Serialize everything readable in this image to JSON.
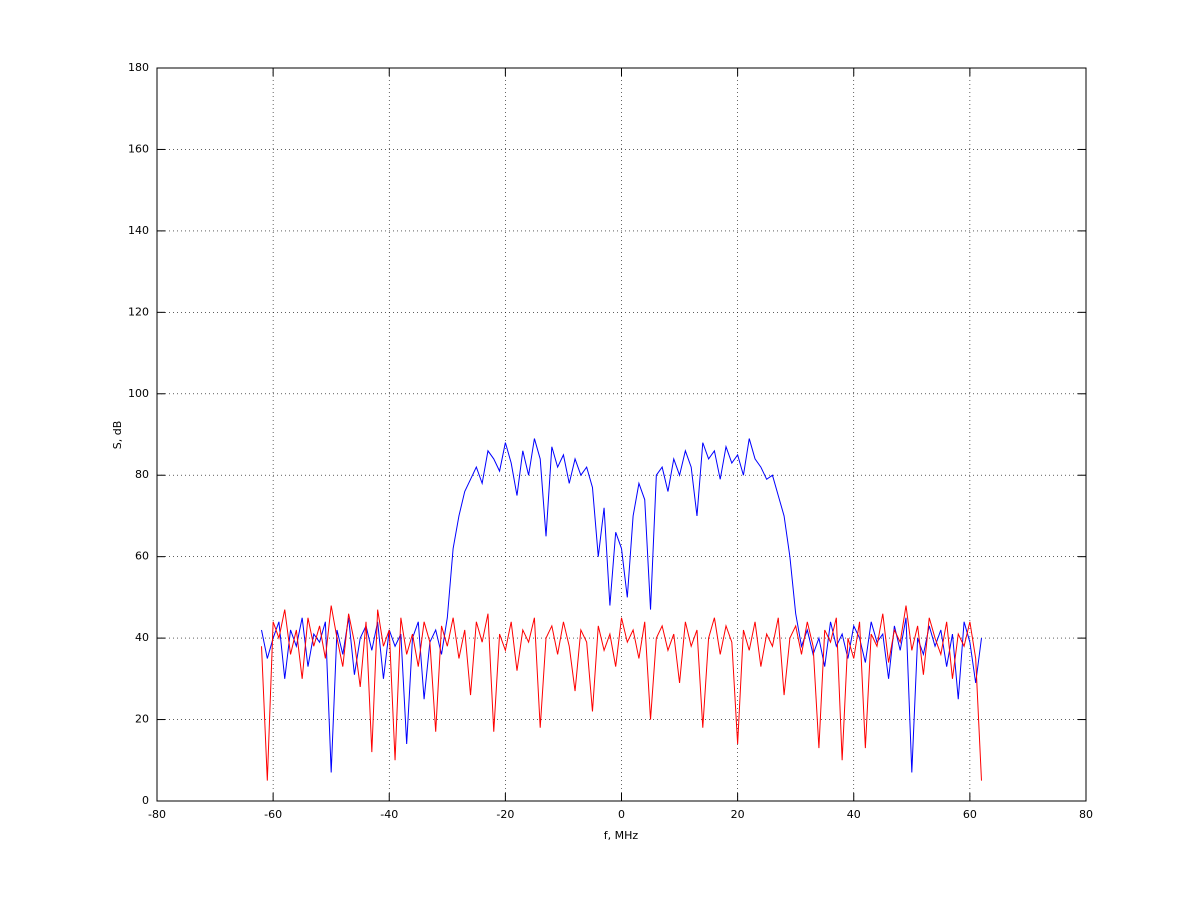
{
  "chart_data": {
    "type": "line",
    "xlabel": "f, MHz",
    "ylabel": "S, dB",
    "x": [
      -62,
      -61,
      -60,
      -59,
      -58,
      -57,
      -56,
      -55,
      -54,
      -53,
      -52,
      -51,
      -50,
      -49,
      -48,
      -47,
      -46,
      -45,
      -44,
      -43,
      -42,
      -41,
      -40,
      -39,
      -38,
      -37,
      -36,
      -35,
      -34,
      -33,
      -32,
      -31,
      -30,
      -29,
      -28,
      -27,
      -26,
      -25,
      -24,
      -23,
      -22,
      -21,
      -20,
      -19,
      -18,
      -17,
      -16,
      -15,
      -14,
      -13,
      -12,
      -11,
      -10,
      -9,
      -8,
      -7,
      -6,
      -5,
      -4,
      -3,
      -2,
      -1,
      0,
      1,
      2,
      3,
      4,
      5,
      6,
      7,
      8,
      9,
      10,
      11,
      12,
      13,
      14,
      15,
      16,
      17,
      18,
      19,
      20,
      21,
      22,
      23,
      24,
      25,
      26,
      27,
      28,
      29,
      30,
      31,
      32,
      33,
      34,
      35,
      36,
      37,
      38,
      39,
      40,
      41,
      42,
      43,
      44,
      45,
      46,
      47,
      48,
      49,
      50,
      51,
      52,
      53,
      54,
      55,
      56,
      57,
      58,
      59,
      60,
      61,
      62
    ],
    "series": [
      {
        "color": "#0000ff",
        "values": [
          42,
          35,
          40,
          44,
          30,
          42,
          38,
          45,
          33,
          41,
          39,
          44,
          7,
          42,
          36,
          45,
          31,
          40,
          43,
          37,
          44,
          30,
          42,
          38,
          41,
          14,
          40,
          44,
          25,
          39,
          42,
          36,
          45,
          62,
          70,
          76,
          79,
          82,
          78,
          86,
          84,
          81,
          88,
          83,
          75,
          86,
          80,
          89,
          84,
          65,
          87,
          82,
          85,
          78,
          84,
          80,
          82,
          77,
          60,
          72,
          48,
          66,
          62,
          50,
          70,
          78,
          74,
          47,
          80,
          82,
          76,
          84,
          80,
          86,
          82,
          70,
          88,
          84,
          86,
          79,
          87,
          83,
          85,
          80,
          89,
          84,
          82,
          79,
          80,
          75,
          70,
          60,
          46,
          38,
          42,
          36,
          40,
          33,
          44,
          38,
          41,
          35,
          43,
          40,
          34,
          44,
          39,
          41,
          30,
          43,
          37,
          45,
          7,
          40,
          36,
          43,
          38,
          42,
          33,
          41,
          25,
          44,
          39,
          29,
          40
        ]
      },
      {
        "color": "#ff0000",
        "values": [
          38,
          5,
          44,
          40,
          47,
          36,
          42,
          30,
          45,
          38,
          43,
          35,
          48,
          40,
          33,
          46,
          39,
          28,
          44,
          12,
          47,
          38,
          42,
          10,
          45,
          36,
          41,
          33,
          44,
          39,
          17,
          43,
          38,
          45,
          35,
          42,
          26,
          44,
          39,
          46,
          17,
          41,
          37,
          44,
          32,
          42,
          39,
          45,
          18,
          40,
          43,
          36,
          44,
          38,
          27,
          42,
          39,
          22,
          43,
          37,
          41,
          33,
          45,
          39,
          42,
          35,
          44,
          20,
          40,
          43,
          37,
          41,
          29,
          44,
          38,
          42,
          18,
          40,
          45,
          36,
          43,
          39,
          14,
          42,
          37,
          44,
          33,
          41,
          38,
          45,
          26,
          40,
          43,
          36,
          44,
          38,
          13,
          42,
          39,
          45,
          10,
          40,
          35,
          44,
          13,
          41,
          38,
          46,
          34,
          42,
          39,
          48,
          37,
          43,
          31,
          45,
          40,
          36,
          44,
          30,
          41,
          38,
          44,
          35,
          5
        ]
      }
    ],
    "xlim": [
      -80,
      80
    ],
    "xticks": [
      -80,
      -60,
      -40,
      -20,
      0,
      20,
      40,
      60,
      80
    ],
    "ylim": [
      0,
      180
    ],
    "yticks": [
      0,
      20,
      40,
      60,
      80,
      100,
      120,
      140,
      160,
      180
    ],
    "grid": true
  }
}
